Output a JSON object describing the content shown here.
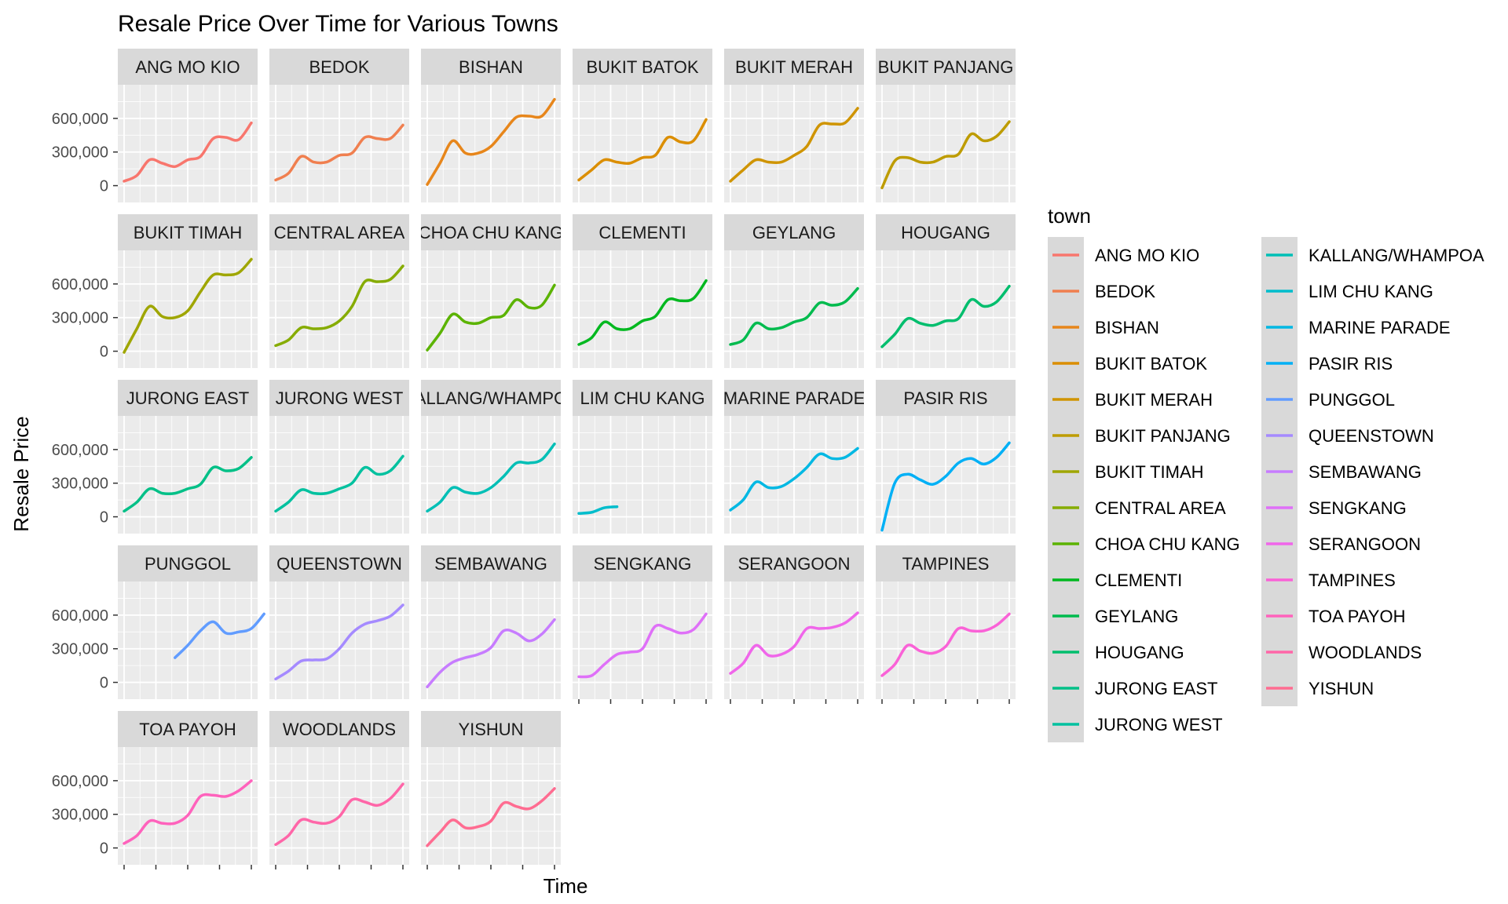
{
  "chart_data": {
    "type": "line",
    "title": "Resale Price Over Time for Various Towns",
    "xlabel": "Time",
    "ylabel": "Resale Price",
    "x_index_range": [
      0,
      10
    ],
    "ylim": [
      -150000,
      900000
    ],
    "y_ticks": [
      0,
      300000,
      600000
    ],
    "y_tick_labels": [
      "0",
      "300,000",
      "600,000"
    ],
    "facet_layout": "6 columns x 5 rows",
    "grid": true,
    "legend": {
      "title": "town",
      "position": "right",
      "columns": 2
    },
    "series": [
      {
        "name": "ANG MO KIO",
        "color": "#F8766D",
        "x_start": 0,
        "values": [
          40000,
          90000,
          230000,
          200000,
          170000,
          230000,
          260000,
          420000,
          430000,
          410000,
          560000
        ]
      },
      {
        "name": "BEDOK",
        "color": "#F07F4F",
        "x_start": 0,
        "values": [
          50000,
          110000,
          260000,
          210000,
          210000,
          270000,
          290000,
          430000,
          420000,
          420000,
          540000
        ]
      },
      {
        "name": "BISHAN",
        "color": "#E7861B",
        "x_start": 0,
        "values": [
          10000,
          200000,
          400000,
          290000,
          290000,
          350000,
          480000,
          610000,
          620000,
          620000,
          770000
        ]
      },
      {
        "name": "BUKIT BATOK",
        "color": "#DB8E00",
        "x_start": 0,
        "values": [
          50000,
          140000,
          230000,
          210000,
          200000,
          250000,
          270000,
          430000,
          390000,
          400000,
          590000
        ]
      },
      {
        "name": "BUKIT MERAH",
        "color": "#CF9400",
        "x_start": 0,
        "values": [
          40000,
          140000,
          230000,
          210000,
          210000,
          270000,
          350000,
          540000,
          550000,
          560000,
          690000
        ]
      },
      {
        "name": "BUKIT PANJANG",
        "color": "#BE9C00",
        "x_start": 0,
        "values": [
          -20000,
          220000,
          250000,
          210000,
          210000,
          260000,
          280000,
          460000,
          400000,
          440000,
          570000
        ]
      },
      {
        "name": "BUKIT TIMAH",
        "color": "#9FA600",
        "x_start": 0,
        "values": [
          -10000,
          200000,
          400000,
          310000,
          300000,
          360000,
          530000,
          680000,
          680000,
          700000,
          820000
        ]
      },
      {
        "name": "CENTRAL AREA",
        "color": "#86AC00",
        "x_start": 0,
        "values": [
          50000,
          100000,
          210000,
          200000,
          210000,
          270000,
          400000,
          620000,
          620000,
          640000,
          760000
        ]
      },
      {
        "name": "CHOA CHU KANG",
        "color": "#5BB300",
        "x_start": 0,
        "values": [
          10000,
          160000,
          330000,
          260000,
          250000,
          300000,
          320000,
          460000,
          390000,
          410000,
          590000
        ]
      },
      {
        "name": "CLEMENTI",
        "color": "#00B81F",
        "x_start": 0,
        "values": [
          60000,
          120000,
          260000,
          200000,
          200000,
          270000,
          310000,
          460000,
          450000,
          470000,
          630000
        ]
      },
      {
        "name": "GEYLANG",
        "color": "#00BB4E",
        "x_start": 0,
        "values": [
          60000,
          100000,
          250000,
          200000,
          210000,
          260000,
          300000,
          430000,
          410000,
          440000,
          560000
        ]
      },
      {
        "name": "HOUGANG",
        "color": "#00BE6D",
        "x_start": 0,
        "values": [
          40000,
          150000,
          290000,
          250000,
          230000,
          270000,
          290000,
          460000,
          400000,
          440000,
          580000
        ]
      },
      {
        "name": "JURONG EAST",
        "color": "#00C087",
        "x_start": 0,
        "values": [
          50000,
          130000,
          250000,
          210000,
          210000,
          250000,
          290000,
          440000,
          410000,
          430000,
          530000
        ]
      },
      {
        "name": "JURONG WEST",
        "color": "#00C19F",
        "x_start": 0,
        "values": [
          50000,
          130000,
          240000,
          210000,
          210000,
          250000,
          300000,
          440000,
          380000,
          410000,
          540000
        ]
      },
      {
        "name": "KALLANG/WHAMPOA",
        "color": "#00BFB6",
        "x_start": 0,
        "values": [
          50000,
          130000,
          260000,
          220000,
          210000,
          260000,
          360000,
          480000,
          480000,
          510000,
          650000
        ]
      },
      {
        "name": "LIM CHU KANG",
        "color": "#00BDCC",
        "x_start": 0,
        "values": [
          30000,
          40000,
          80000,
          90000
        ]
      },
      {
        "name": "MARINE PARADE",
        "color": "#00B8E3",
        "x_start": 0,
        "values": [
          60000,
          150000,
          310000,
          260000,
          270000,
          340000,
          440000,
          560000,
          520000,
          530000,
          610000
        ]
      },
      {
        "name": "PASIR RIS",
        "color": "#00B0F6",
        "x_start": 0,
        "values": [
          -120000,
          300000,
          380000,
          330000,
          290000,
          360000,
          480000,
          520000,
          470000,
          530000,
          660000
        ]
      },
      {
        "name": "PUNGGOL",
        "color": "#619CFF",
        "x_start": 4,
        "values": [
          220000,
          330000,
          460000,
          540000,
          440000,
          450000,
          480000,
          610000
        ]
      },
      {
        "name": "QUEENSTOWN",
        "color": "#A58AFF",
        "x_start": 0,
        "values": [
          30000,
          100000,
          190000,
          200000,
          210000,
          300000,
          440000,
          520000,
          550000,
          590000,
          690000
        ]
      },
      {
        "name": "SEMBAWANG",
        "color": "#C77CFF",
        "x_start": 0,
        "values": [
          -40000,
          90000,
          180000,
          220000,
          250000,
          310000,
          460000,
          440000,
          370000,
          430000,
          560000
        ]
      },
      {
        "name": "SENGKANG",
        "color": "#DF70F8",
        "x_start": 0,
        "values": [
          50000,
          60000,
          160000,
          250000,
          270000,
          300000,
          500000,
          480000,
          440000,
          470000,
          610000
        ]
      },
      {
        "name": "SERANGOON",
        "color": "#F066EA",
        "x_start": 0,
        "values": [
          80000,
          170000,
          330000,
          240000,
          250000,
          320000,
          480000,
          480000,
          490000,
          530000,
          620000
        ]
      },
      {
        "name": "TAMPINES",
        "color": "#FA62D7",
        "x_start": 0,
        "values": [
          60000,
          160000,
          330000,
          280000,
          260000,
          320000,
          480000,
          460000,
          460000,
          510000,
          610000
        ]
      },
      {
        "name": "TOA PAYOH",
        "color": "#FF62BC",
        "x_start": 0,
        "values": [
          40000,
          110000,
          240000,
          220000,
          220000,
          290000,
          460000,
          470000,
          460000,
          510000,
          600000
        ]
      },
      {
        "name": "WOODLANDS",
        "color": "#FF66A8",
        "x_start": 0,
        "values": [
          30000,
          110000,
          250000,
          230000,
          220000,
          280000,
          430000,
          410000,
          380000,
          440000,
          570000
        ]
      },
      {
        "name": "YISHUN",
        "color": "#FF6C91",
        "x_start": 0,
        "values": [
          20000,
          140000,
          250000,
          180000,
          190000,
          240000,
          400000,
          370000,
          350000,
          420000,
          530000
        ]
      }
    ]
  }
}
